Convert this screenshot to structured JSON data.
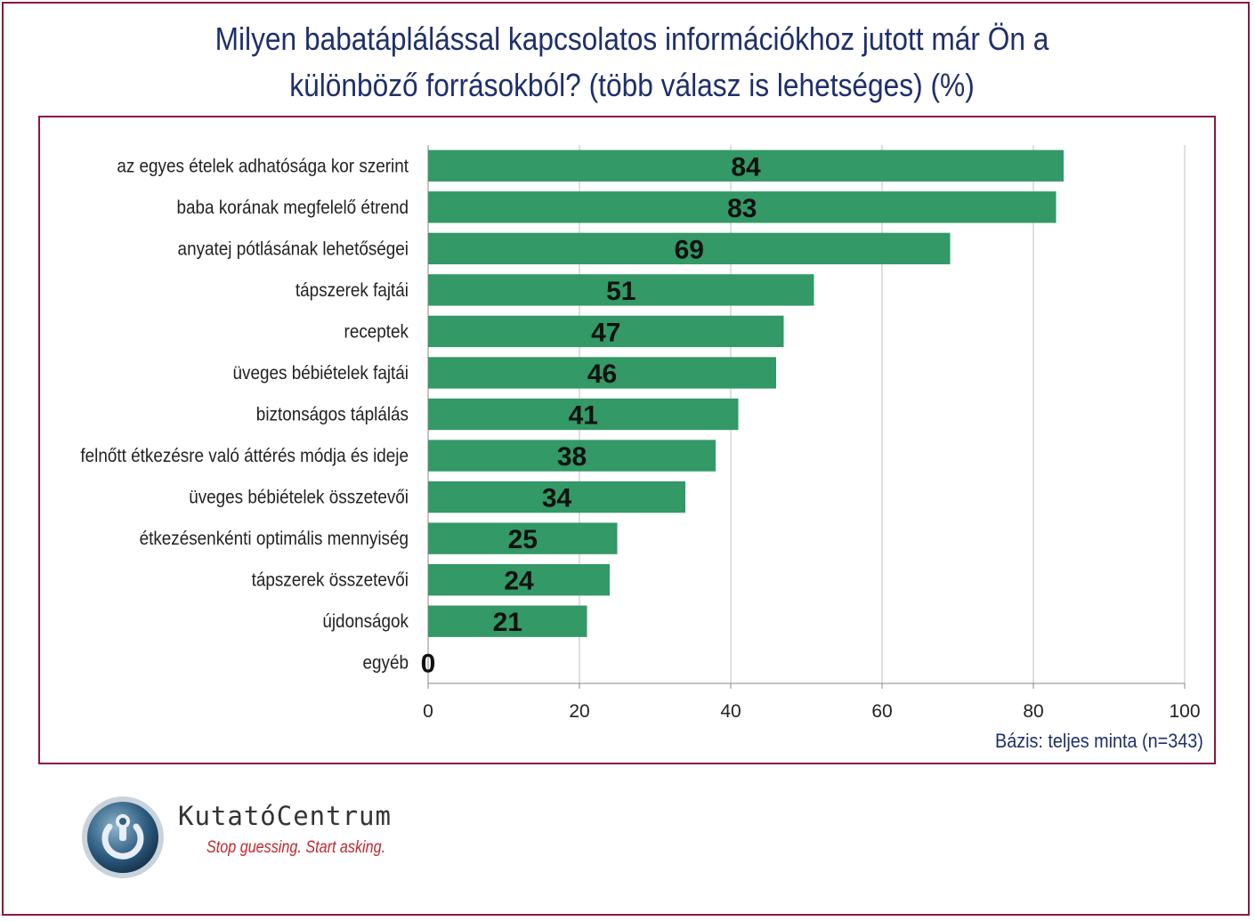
{
  "title": {
    "line1": "Milyen babatáplálással kapcsolatos információkhoz jutott már Ön a",
    "line2": "különböző forrásokból? (több válasz is lehetséges) (%)"
  },
  "footnote": "Bázis:  teljes minta (n=343)",
  "brand": {
    "name": "KutatóCentrum",
    "tagline": "Stop guessing. Start asking."
  },
  "colors": {
    "bar": "#339966",
    "frame": "#8b1a3a",
    "title": "#1f2f6b",
    "grid": "#bfbfbf"
  },
  "chart_data": {
    "type": "bar",
    "orientation": "horizontal",
    "categories": [
      "az egyes ételek adhatósága kor szerint",
      "baba korának megfelelő étrend",
      "anyatej pótlásának lehetőségei",
      "tápszerek fajtái",
      "receptek",
      "üveges bébiételek fajtái",
      "biztonságos táplálás",
      "felnőtt étkezésre való áttérés módja és ideje",
      "üveges bébiételek összetevői",
      "étkezésenkénti optimális mennyiség",
      "tápszerek összetevői",
      "újdonságok",
      "egyéb"
    ],
    "values": [
      84,
      83,
      69,
      51,
      47,
      46,
      41,
      38,
      34,
      25,
      24,
      21,
      0
    ],
    "data_labels": [
      "84",
      "83",
      "69",
      "51",
      "47",
      "46",
      "41",
      "38",
      "34",
      "25",
      "24",
      "21",
      "0"
    ],
    "xlim": [
      0,
      100
    ],
    "xticks": [
      "0",
      "20",
      "40",
      "60",
      "80",
      "100"
    ],
    "grid": true,
    "legend": "none"
  }
}
